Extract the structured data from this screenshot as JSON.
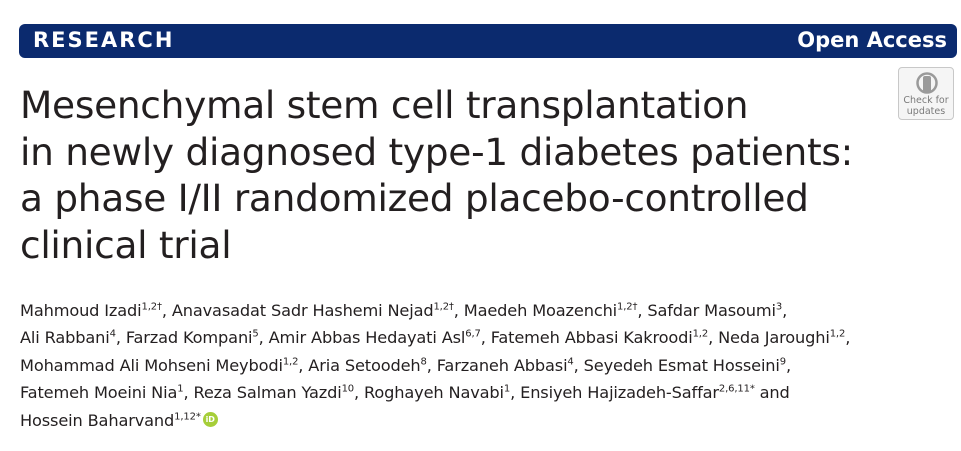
{
  "banner": {
    "left_label": "RESEARCH",
    "right_label": "Open Access",
    "color": "#0b2a6e"
  },
  "check_updates": {
    "line1": "Check for",
    "line2": "updates",
    "icon": "check-for-updates-icon"
  },
  "title_lines": [
    "Mesenchymal stem cell transplantation",
    "in newly diagnosed type-1 diabetes patients:",
    "a phase I/II randomized placebo-controlled",
    "clinical trial"
  ],
  "authors_lines": [
    [
      {
        "name": "Mahmoud Izadi",
        "sup": "1,2†",
        "sep": ", "
      },
      {
        "name": "Anavasadat Sadr Hashemi Nejad",
        "sup": "1,2†",
        "sep": ", "
      },
      {
        "name": "Maedeh Moazenchi",
        "sup": "1,2†",
        "sep": ", "
      },
      {
        "name": "Safdar Masoumi",
        "sup": "3",
        "sep": ","
      }
    ],
    [
      {
        "name": "Ali Rabbani",
        "sup": "4",
        "sep": ", "
      },
      {
        "name": "Farzad Kompani",
        "sup": "5",
        "sep": ", "
      },
      {
        "name": "Amir Abbas Hedayati Asl",
        "sup": "6,7",
        "sep": ", "
      },
      {
        "name": "Fatemeh Abbasi Kakroodi",
        "sup": "1,2",
        "sep": ", "
      },
      {
        "name": "Neda Jaroughi",
        "sup": "1,2",
        "sep": ","
      }
    ],
    [
      {
        "name": "Mohammad Ali Mohseni Meybodi",
        "sup": "1,2",
        "sep": ", "
      },
      {
        "name": "Aria Setoodeh",
        "sup": "8",
        "sep": ", "
      },
      {
        "name": "Farzaneh Abbasi",
        "sup": "4",
        "sep": ", "
      },
      {
        "name": "Seyedeh Esmat Hosseini",
        "sup": "9",
        "sep": ","
      }
    ],
    [
      {
        "name": "Fatemeh Moeini Nia",
        "sup": "1",
        "sep": ", "
      },
      {
        "name": "Reza Salman Yazdi",
        "sup": "10",
        "sep": ", "
      },
      {
        "name": "Roghayeh Navabi",
        "sup": "1",
        "sep": ", "
      },
      {
        "name": "Ensiyeh Hajizadeh-Saffar",
        "sup": "2,6,11*",
        "sep": " and"
      }
    ],
    [
      {
        "name": "Hossein Baharvand",
        "sup": "1,12*",
        "sep": ""
      }
    ]
  ],
  "orcid": {
    "label": "iD",
    "color": "#a6ce39",
    "icon": "orcid-icon"
  }
}
